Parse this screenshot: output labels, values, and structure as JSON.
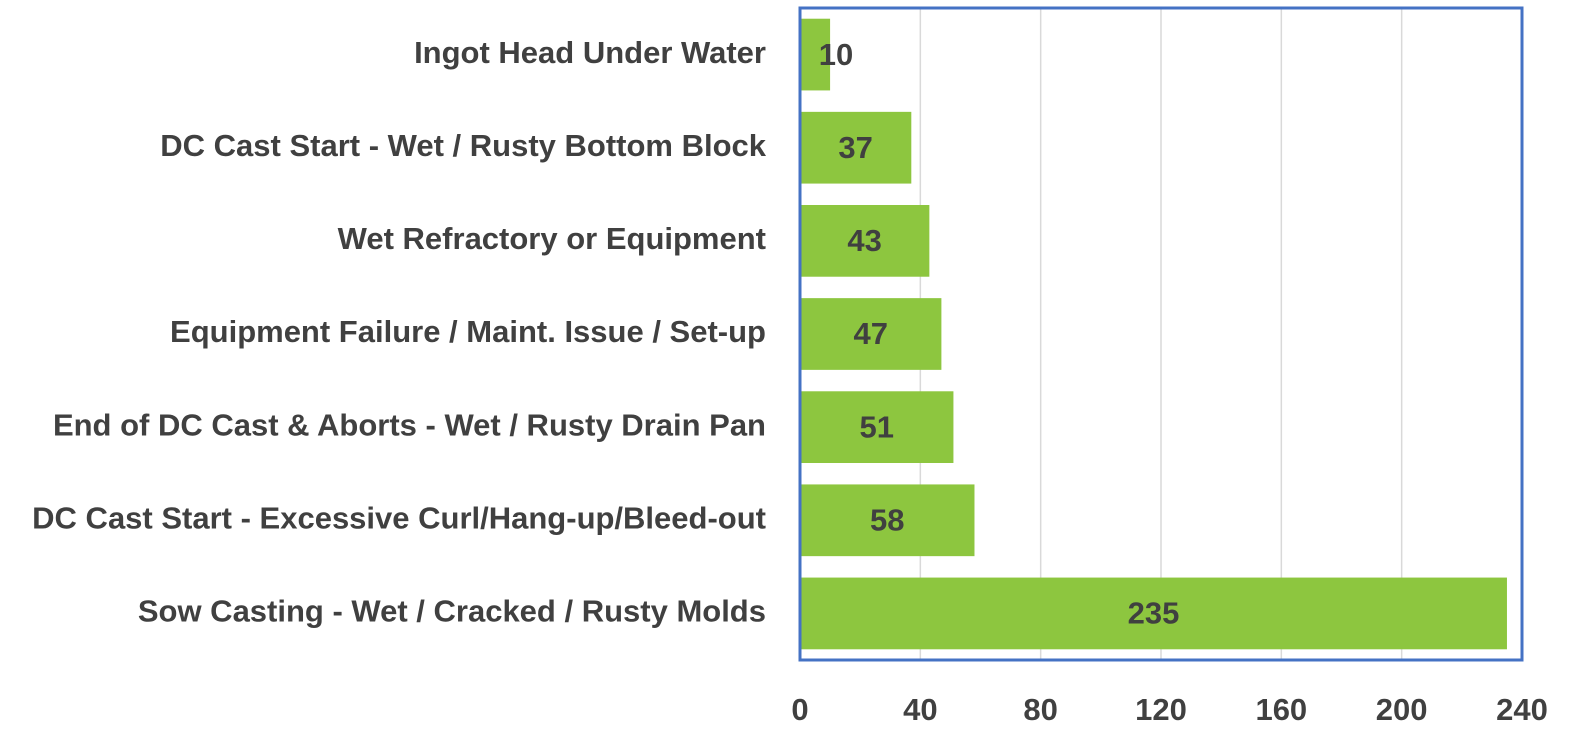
{
  "chart_data": {
    "type": "bar",
    "orientation": "horizontal",
    "categories": [
      "Ingot Head Under Water",
      "DC Cast Start - Wet / Rusty Bottom Block",
      "Wet Refractory or Equipment",
      "Equipment Failure / Maint. Issue / Set-up",
      "End of DC Cast & Aborts - Wet / Rusty Drain Pan",
      "DC Cast Start - Excessive Curl/Hang-up/Bleed-out",
      "Sow Casting - Wet / Cracked / Rusty Molds"
    ],
    "values": [
      10,
      37,
      43,
      47,
      51,
      58,
      235
    ],
    "color": "#8dc63f",
    "xlim": [
      0,
      240
    ],
    "xticks": [
      0,
      40,
      80,
      120,
      160,
      200,
      240
    ],
    "grid": true
  }
}
